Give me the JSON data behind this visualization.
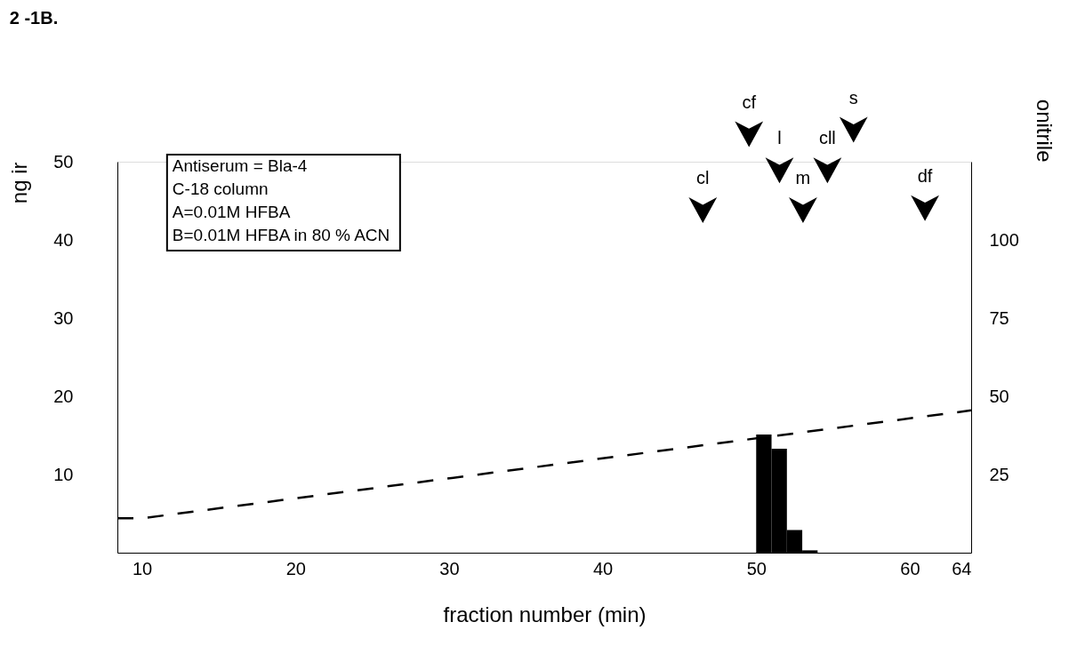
{
  "chart_data": {
    "type": "histogram",
    "title": "2 -1B.",
    "xlabel": "fraction number (min)",
    "ylabel": "ng ir",
    "y2label": "onitrile",
    "bins": [
      50,
      51,
      52,
      53,
      54
    ],
    "values": [
      15.1,
      13.3,
      2.9,
      0.3
    ],
    "color": "#000000",
    "series": [
      {
        "type": "line",
        "axis": "y2",
        "line_style": "dashed",
        "color": "#000000",
        "x": [
          8.4,
          10,
          64
        ],
        "values": [
          11,
          11,
          45.5
        ]
      }
    ],
    "xlim": [
      8.4,
      64
    ],
    "xticks": [
      10,
      20,
      30,
      40,
      50,
      60,
      64
    ],
    "ylim": [
      0,
      50
    ],
    "yticks": [
      10,
      20,
      30,
      40,
      50
    ],
    "y2lim": [
      0,
      125
    ],
    "y2ticks": [
      25,
      50,
      75,
      100
    ],
    "grid": false,
    "annotations": [
      "Antiserum = Bla-4",
      "C-18 column",
      "A=0.01M HFBA",
      "B=0.01M HFBA in 80 % ACN",
      "cl",
      "cf",
      "l",
      "m",
      "cll",
      "s",
      "df"
    ]
  }
}
